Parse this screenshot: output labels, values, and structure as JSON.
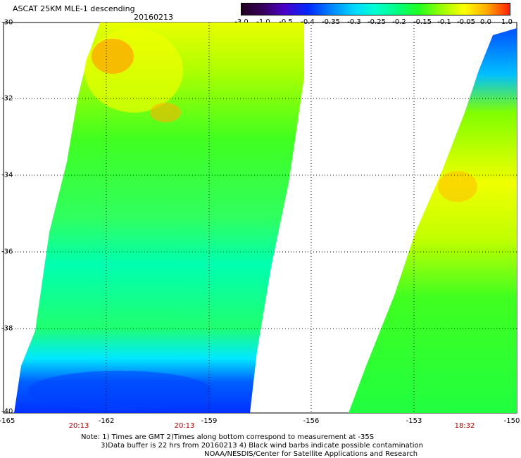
{
  "header": {
    "title": "ASCAT 25KM MLE-1 descending",
    "date": "20160213"
  },
  "colorbar": {
    "ticks": [
      "-3.0",
      "-1.0",
      "-0.5",
      "-0.4",
      "-0.35",
      "-0.3",
      "-0.25",
      "-0.2",
      "-0.15",
      "-0.1",
      "-0.05",
      "0.0",
      "1.0"
    ],
    "colors": [
      "#200020",
      "#38005a",
      "#4b00c8",
      "#0028ff",
      "#0080ff",
      "#00d8ff",
      "#00ffd0",
      "#00ff80",
      "#20ff20",
      "#a0ff00",
      "#ffff00",
      "#ffb000",
      "#ff2000"
    ]
  },
  "axes": {
    "lat_labels": [
      "-30",
      "-32",
      "-34",
      "-36",
      "-38",
      "-40"
    ],
    "lon_labels": [
      "-165",
      "-162",
      "-159",
      "-156",
      "-153",
      "-150"
    ]
  },
  "times": [
    "20:13",
    "20:13",
    "18:32"
  ],
  "notes": {
    "line1": "Note: 1) Times are GMT 2)Times along bottom correspond to measurement at -35S",
    "line2": "3)Data buffer is 22 hrs from 20160213 4) Black wind barbs indicate possible contamination",
    "credit": "NOAA/NESDIS/Center for Satellite Applications and Research"
  }
}
